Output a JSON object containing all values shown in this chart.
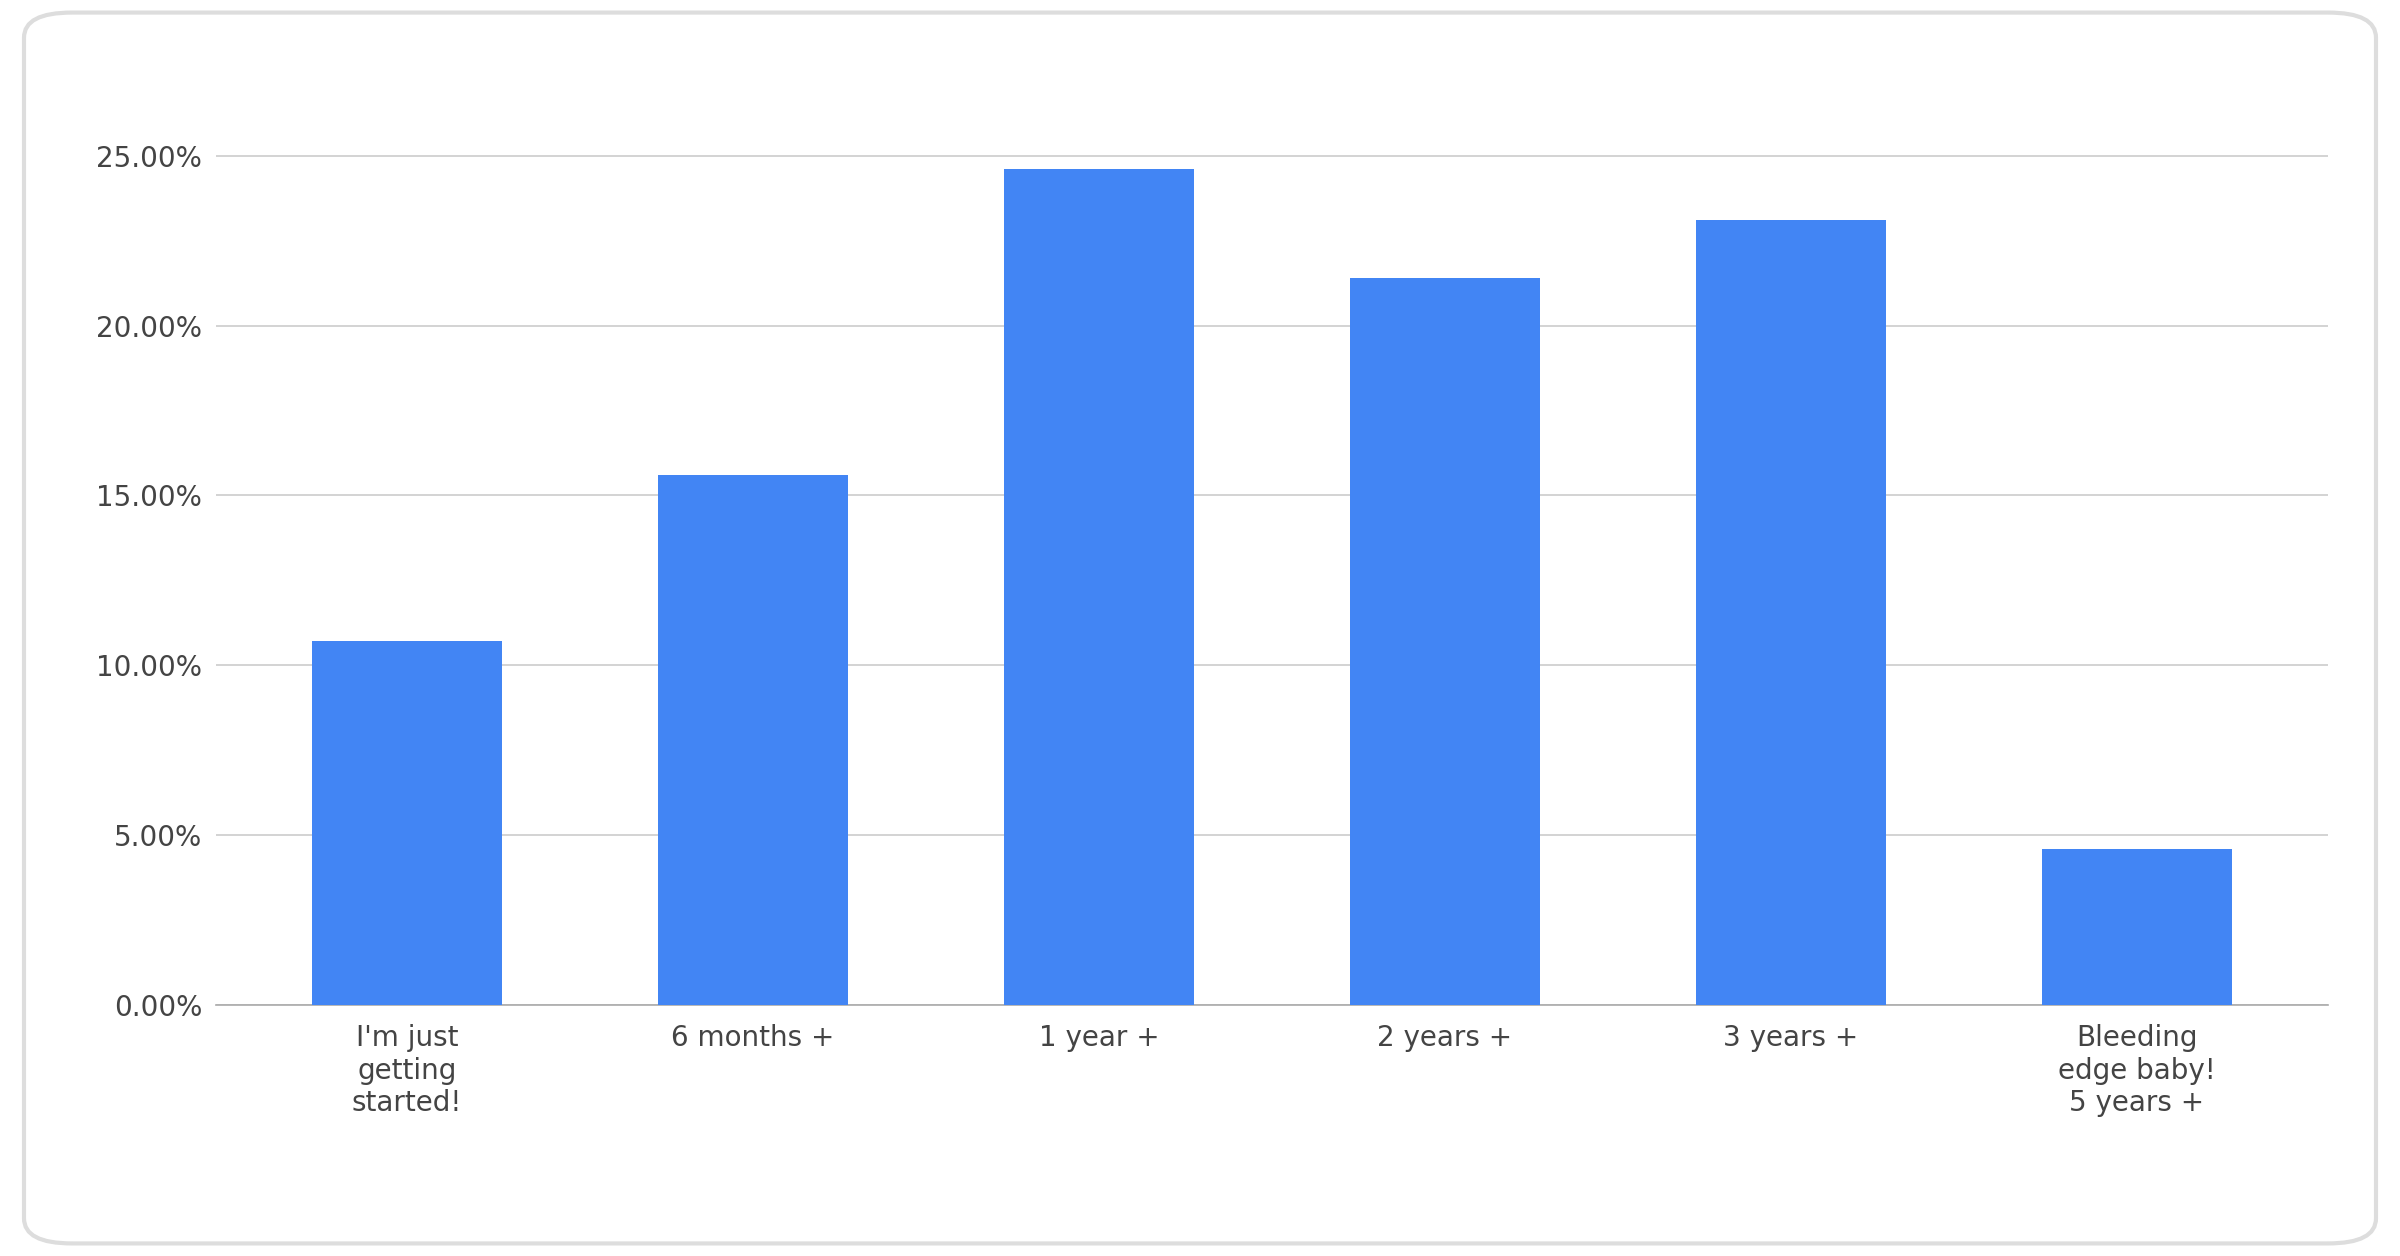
{
  "categories": [
    "I'm just\ngetting\nstarted!",
    "6 months +",
    "1 year +",
    "2 years +",
    "3 years +",
    "Bleeding\nedge baby!\n5 years +"
  ],
  "values": [
    0.107,
    0.156,
    0.246,
    0.214,
    0.231,
    0.046
  ],
  "bar_color": "#4285f4",
  "ylim": [
    0,
    0.27
  ],
  "yticks": [
    0.0,
    0.05,
    0.1,
    0.15,
    0.2,
    0.25
  ],
  "background_color": "#ffffff",
  "grid_color": "#cccccc",
  "bar_width": 0.55,
  "tick_fontsize": 20,
  "xlabel_fontsize": 20,
  "border_color": "#dddddd",
  "spine_color": "#aaaaaa",
  "text_color": "#444444"
}
